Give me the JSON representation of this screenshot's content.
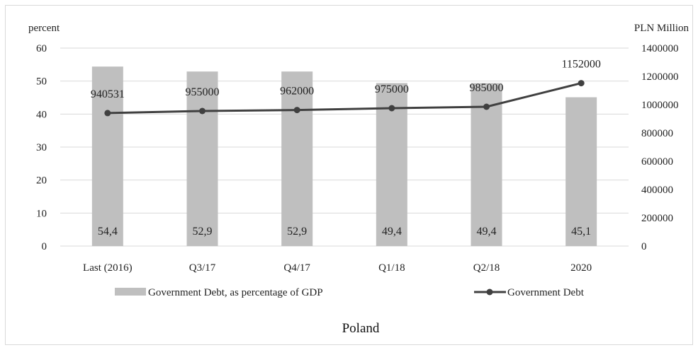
{
  "chart_data": {
    "type": "bar",
    "title": "Poland",
    "categories": [
      "Last (2016)",
      "Q3/17",
      "Q4/17",
      "Q1/18",
      "Q2/18",
      "2020"
    ],
    "series": [
      {
        "name": "Government Debt, as percentage of GDP",
        "type": "bar",
        "axis": "left",
        "values": [
          54.4,
          52.9,
          52.9,
          49.4,
          49.4,
          45.1
        ],
        "labels": [
          "54,4",
          "52,9",
          "52,9",
          "49,4",
          "49,4",
          "45,1"
        ],
        "color": "#bfbfbf"
      },
      {
        "name": "Government Debt",
        "type": "line",
        "axis": "right",
        "values": [
          940531,
          955000,
          962000,
          975000,
          985000,
          1152000
        ],
        "labels": [
          "940531",
          "955000",
          "962000",
          "975000",
          "985000",
          "1152000"
        ],
        "color": "#404040"
      }
    ],
    "y_left": {
      "label": "percent",
      "range": [
        0,
        60
      ],
      "ticks": [
        0,
        10,
        20,
        30,
        40,
        50,
        60
      ],
      "tick_labels": [
        "0",
        "10",
        "20",
        "30",
        "40",
        "50",
        "60"
      ]
    },
    "y_right": {
      "label": "PLN Million",
      "range": [
        0,
        1400000
      ],
      "ticks": [
        0,
        200000,
        400000,
        600000,
        800000,
        1000000,
        1200000,
        1400000
      ],
      "tick_labels": [
        "0",
        "200000",
        "400000",
        "600000",
        "800000",
        "1000000",
        "1200000",
        "1400000"
      ]
    },
    "grid": true,
    "legend_position": "bottom"
  }
}
